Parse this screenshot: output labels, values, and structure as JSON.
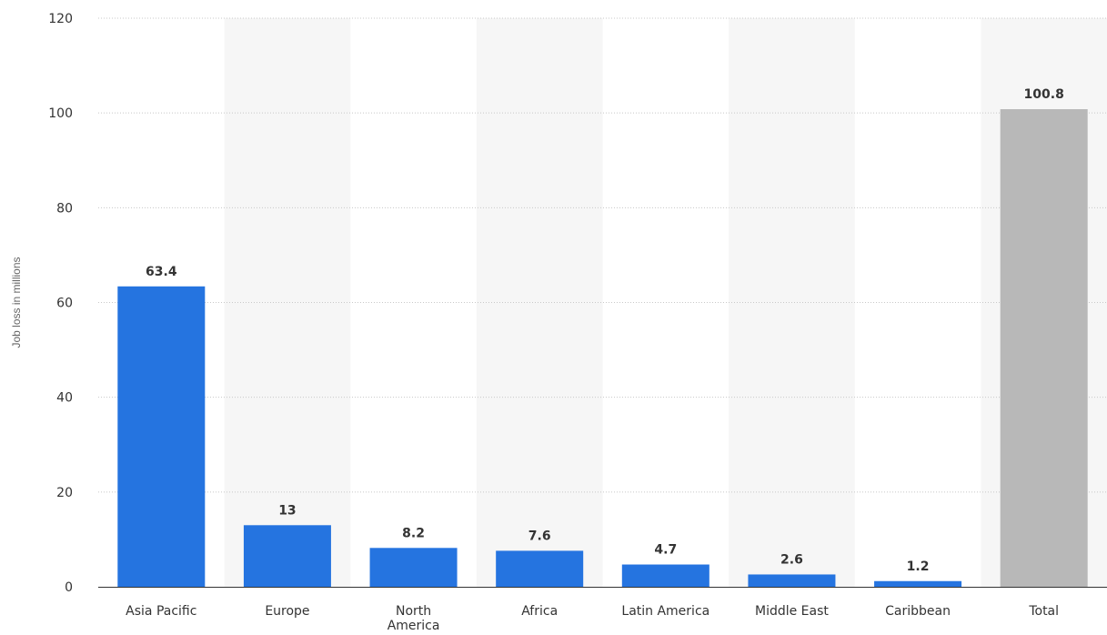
{
  "chart_data": {
    "type": "bar",
    "title": "",
    "xlabel": "",
    "ylabel": "Job loss in millions",
    "ylim": [
      0,
      120
    ],
    "yticks": [
      0,
      20,
      40,
      60,
      80,
      100,
      120
    ],
    "grid": true,
    "legend": "none",
    "categories": [
      "Asia Pacific",
      "Europe",
      "North America",
      "Africa",
      "Latin America",
      "Middle East",
      "Caribbean",
      "Total"
    ],
    "values": [
      63.4,
      13,
      8.2,
      7.6,
      4.7,
      2.6,
      1.2,
      100.8
    ],
    "data_labels": [
      "63.4",
      "13",
      "8.2",
      "7.6",
      "4.7",
      "2.6",
      "1.2",
      "100.8"
    ],
    "category_label_lines": [
      [
        "Asia Pacific"
      ],
      [
        "Europe"
      ],
      [
        "North",
        "America"
      ],
      [
        "Africa"
      ],
      [
        "Latin America"
      ],
      [
        "Middle East"
      ],
      [
        "Caribbean"
      ],
      [
        "Total"
      ]
    ],
    "colors": {
      "bar": "#2574e0",
      "total_bar": "#b8b8b8",
      "band": "#f6f6f6",
      "axis": "#333333",
      "grid": "#c8c8c8"
    }
  }
}
